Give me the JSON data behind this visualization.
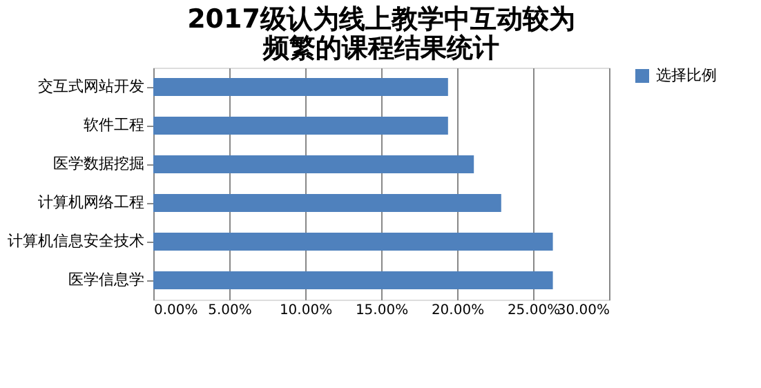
{
  "chart_data": {
    "type": "bar",
    "orientation": "horizontal",
    "title": "2017级认为线上教学中互动较为频繁的课程结果统计",
    "categories": [
      "交互式网站开发",
      "软件工程",
      "医学数据挖掘",
      "计算机网络工程",
      "计算机信息安全技术",
      "医学信息学"
    ],
    "series": [
      {
        "name": "选择比例",
        "color": "#4f81bd",
        "values": [
          19.4,
          19.4,
          21.1,
          22.9,
          26.3,
          26.3
        ]
      }
    ],
    "xlim": [
      0,
      30
    ],
    "xticks": [
      {
        "value": 0,
        "label": "0.00%"
      },
      {
        "value": 5,
        "label": "5.00%"
      },
      {
        "value": 10,
        "label": "10.00%"
      },
      {
        "value": 15,
        "label": "15.00%"
      },
      {
        "value": 20,
        "label": "20.00%"
      },
      {
        "value": 25,
        "label": "25.00%"
      },
      {
        "value": 30,
        "label": "30.00%"
      }
    ],
    "grid": "x",
    "legend": "right"
  }
}
